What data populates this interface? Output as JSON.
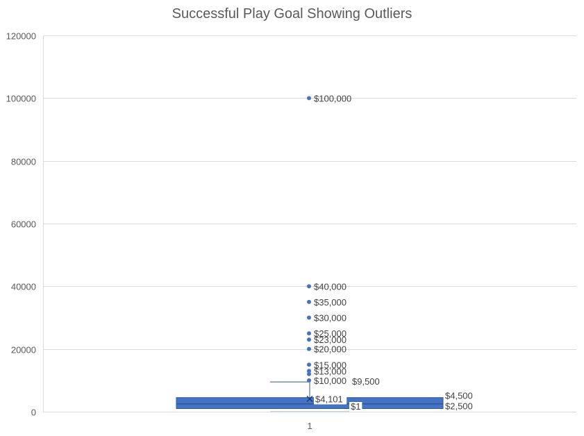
{
  "chart_data": {
    "type": "box",
    "title": "Successful Play Goal Showing Outliers",
    "xlabel": "",
    "ylabel": "",
    "ylim": [
      0,
      120000
    ],
    "yticks": [
      0,
      20000,
      40000,
      60000,
      80000,
      100000,
      120000
    ],
    "ytick_labels": [
      "0",
      "20000",
      "40000",
      "60000",
      "80000",
      "100000",
      "120000"
    ],
    "categories": [
      "1"
    ],
    "grid": true,
    "colors": {
      "box": "#4472C4",
      "box_edge": "#2F5597",
      "point": "#4472C4"
    },
    "box": {
      "min": 1,
      "q1": 1000,
      "median": 2500,
      "q3": 4500,
      "max": 9500,
      "mean": 4101,
      "min_label": "$1",
      "median_label": "$2,500",
      "q3_label": "$4,500",
      "max_label": "$9,500",
      "mean_label": "$4,101"
    },
    "outliers": [
      {
        "value": 10000,
        "label": "$10,000"
      },
      {
        "value": 12000,
        "label": ""
      },
      {
        "value": 13000,
        "label": "$13,000"
      },
      {
        "value": 15000,
        "label": "$15,000"
      },
      {
        "value": 20000,
        "label": "$20,000"
      },
      {
        "value": 23000,
        "label": "$23,000"
      },
      {
        "value": 25000,
        "label": "$25,000"
      },
      {
        "value": 30000,
        "label": "$30,000"
      },
      {
        "value": 35000,
        "label": "$35,000"
      },
      {
        "value": 40000,
        "label": "$40,000"
      },
      {
        "value": 100000,
        "label": "$100,000"
      }
    ]
  }
}
